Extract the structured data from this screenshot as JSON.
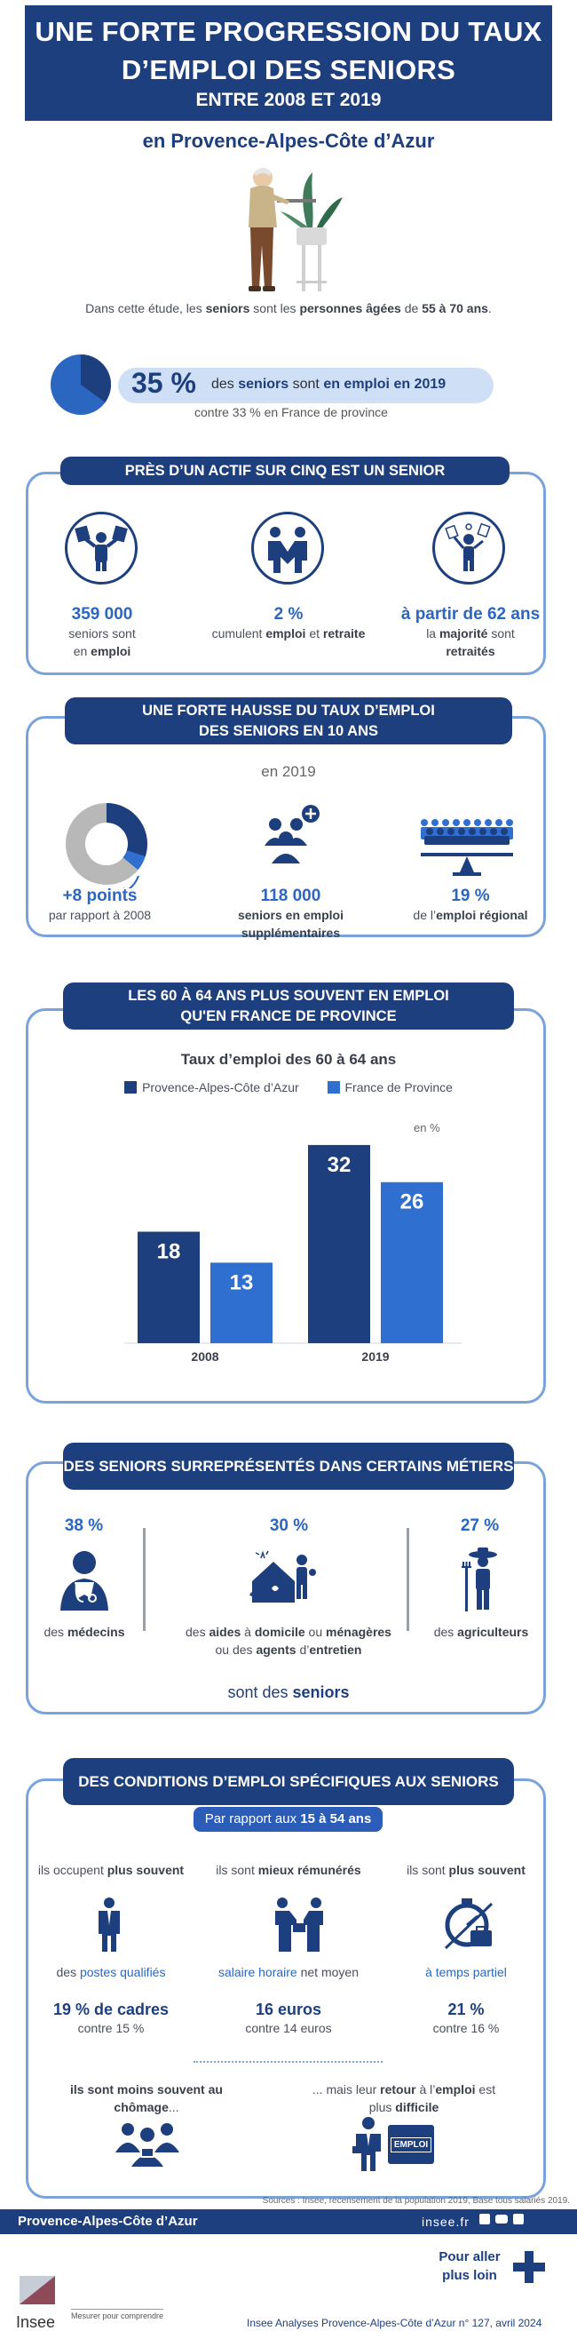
{
  "header": {
    "line1": "UNE FORTE PROGRESSION DU TAUX",
    "line2": "D’EMPLOI DES SENIORS",
    "line3": "ENTRE 2008 ET 2019"
  },
  "region": "en Provence-Alpes-Côte d’Azur",
  "intro": {
    "a": "Dans cette étude, les ",
    "b": "seniors",
    "c": " sont les ",
    "d": "personnes âgées",
    "e": " de ",
    "f": "55 à 70 ans",
    "g": "."
  },
  "headline": {
    "pct": "35 %",
    "t1": "des ",
    "t2": "seniors",
    "t3": " sont ",
    "t4": "en emploi en 2019",
    "sub": "contre 33 % en France de province",
    "pie_fraction": 0.35
  },
  "s1": {
    "title": "PRÈS D’UN ACTIF SUR CINQ EST UN SENIOR",
    "c1": {
      "value": "359 000",
      "a": "seniors sont",
      "b": "en ",
      "c": "emploi"
    },
    "c2": {
      "value": "2 %",
      "a": "cumulent ",
      "b": "emploi",
      "c": " et ",
      "d": "retraite"
    },
    "c3": {
      "value": "à partir de 62 ans",
      "a": "la ",
      "b": "majorité",
      "c": " sont",
      "d": "retraités"
    }
  },
  "s2": {
    "title1": "UNE FORTE HAUSSE DU TAUX D’EMPLOI",
    "title2": "DES SENIORS EN 10 ANS",
    "year": "en 2019",
    "c1": {
      "value": "+8 points",
      "a": "par rapport à 2008"
    },
    "c2": {
      "value": "118 000",
      "a": "seniors en emploi",
      "b": "supplémentaires"
    },
    "c3": {
      "value": "19 %",
      "a": "de l’",
      "b": "emploi régional"
    }
  },
  "s3": {
    "title1": "LES 60 À 64 ANS PLUS SOUVENT EN EMPLOI",
    "title2": "QU'EN FRANCE DE PROVINCE"
  },
  "chart_data": {
    "type": "bar",
    "title": "Taux d’emploi des 60 à 64 ans",
    "unit": "en %",
    "categories": [
      "2008",
      "2019"
    ],
    "series": [
      {
        "name": "Provence-Alpes-Côte d’Azur",
        "values": [
          18,
          32
        ],
        "color": "#1e3f7e"
      },
      {
        "name": "France de Province",
        "values": [
          13,
          26
        ],
        "color": "#2f6fd0"
      }
    ],
    "ylim": [
      0,
      35
    ]
  },
  "s4": {
    "title": "DES SENIORS SURREPRÉSENTÉS DANS CERTAINS MÉTIERS",
    "c1": {
      "value": "38 %",
      "a": "des ",
      "b": "médecins"
    },
    "c2": {
      "value": "30 %",
      "a": "des ",
      "b": "aides",
      "c": " à ",
      "d": "domicile",
      "e": " ou ",
      "f": "ménagères",
      "g": "ou des ",
      "h": "agents",
      "i": " d’",
      "j": "entretien"
    },
    "c3": {
      "value": "27 %",
      "a": "des ",
      "b": "agriculteurs"
    },
    "footer_a": "sont des ",
    "footer_b": "seniors"
  },
  "s5": {
    "title": "DES CONDITIONS D’EMPLOI SPÉCIFIQUES AUX SENIORS",
    "pill_a": "Par rapport aux ",
    "pill_b": "15 à 54 ans",
    "c1": {
      "h_a": "ils occupent ",
      "h_b": "plus souvent",
      "l_a": "des ",
      "l_b": "postes qualifiés",
      "v": "19 % de cadres",
      "s": "contre 15 %"
    },
    "c2": {
      "h_a": "ils sont ",
      "h_b": "mieux rémunérés",
      "l_a": "salaire horaire",
      "l_b": " net moyen",
      "v": "16 euros",
      "s": "contre 14 euros"
    },
    "c3": {
      "h_a": "ils sont ",
      "h_b": "plus souvent",
      "l_a": "à temps partiel",
      "v": "21 %",
      "s": "contre 16 %"
    },
    "b1": {
      "a": "ils sont moins souvent au",
      "b": "chômage",
      "c": "..."
    },
    "b2": {
      "a": "... mais leur ",
      "b": "retour",
      "c": " à l’",
      "d": "emploi",
      "e": " est",
      "f": "plus ",
      "g": "difficile"
    },
    "badge": "EMPLOI"
  },
  "footer": {
    "sources": "Sources : Insee, recensement de la population 2019, Base tous salariés 2019.",
    "region": "Provence-Alpes-Côte d’Azur",
    "site": "insee.fr",
    "more1": "Pour aller",
    "more2": "plus loin",
    "brand": "Insee",
    "tagline": "Mesurer pour comprendre",
    "pub": "Insee Analyses Provence-Alpes-Côte d’Azur n° 127, avril 2024"
  },
  "colors": {
    "navy": "#1e3f7e",
    "blue": "#2b66c0",
    "panel": "#7aa3dc"
  }
}
